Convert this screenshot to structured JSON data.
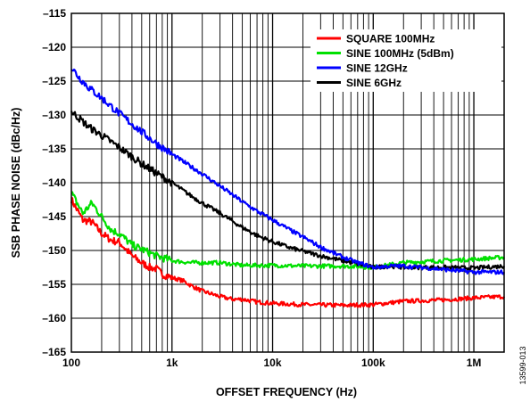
{
  "chart_data": {
    "type": "line",
    "title": "",
    "xlabel": "OFFSET FREQUENCY (Hz)",
    "ylabel": "SSB PHASE NOISE (dBc/Hz)",
    "x_scale": "log",
    "xlim": [
      100,
      2000000
    ],
    "ylim": [
      -165,
      -115
    ],
    "x_ticks": [
      {
        "value": 100,
        "label": "100"
      },
      {
        "value": 1000,
        "label": "1k"
      },
      {
        "value": 10000,
        "label": "10k"
      },
      {
        "value": 100000,
        "label": "100k"
      },
      {
        "value": 1000000,
        "label": "1M"
      }
    ],
    "y_ticks": [
      {
        "value": -115,
        "label": "–115"
      },
      {
        "value": -120,
        "label": "–120"
      },
      {
        "value": -125,
        "label": "–125"
      },
      {
        "value": -130,
        "label": "–130"
      },
      {
        "value": -135,
        "label": "–135"
      },
      {
        "value": -140,
        "label": "–140"
      },
      {
        "value": -145,
        "label": "–145"
      },
      {
        "value": -150,
        "label": "–150"
      },
      {
        "value": -155,
        "label": "–155"
      },
      {
        "value": -160,
        "label": "–160"
      },
      {
        "value": -165,
        "label": "–165"
      }
    ],
    "grid": true,
    "legend_position": "top-right",
    "series": [
      {
        "name": "SQUARE 100MHz",
        "color": "#ff0000",
        "x": [
          100,
          130,
          160,
          200,
          250,
          300,
          400,
          500,
          600,
          700,
          800,
          1000,
          1300,
          1600,
          2000,
          3000,
          4000,
          5000,
          7000,
          10000,
          20000,
          50000,
          100000,
          200000,
          500000,
          1000000,
          2000000
        ],
        "y": [
          -142.5,
          -145.5,
          -145.8,
          -147.5,
          -148.5,
          -148.8,
          -150.8,
          -151.8,
          -152.5,
          -152.7,
          -153.5,
          -154,
          -154.5,
          -155.3,
          -156,
          -156.8,
          -157.2,
          -157.2,
          -157.6,
          -157.8,
          -158,
          -158.1,
          -158,
          -157.5,
          -157.3,
          -157,
          -156.8
        ]
      },
      {
        "name": "SINE 100MHz (5dBm)",
        "color": "#00e000",
        "x": [
          100,
          130,
          160,
          200,
          250,
          300,
          400,
          500,
          700,
          1000,
          1500,
          2000,
          3000,
          5000,
          10000,
          20000,
          50000,
          100000,
          200000,
          500000,
          1000000,
          2000000
        ],
        "y": [
          -141.5,
          -144.5,
          -143,
          -145,
          -147,
          -147.5,
          -149.2,
          -149.8,
          -150.8,
          -151.5,
          -151.8,
          -151.8,
          -151.8,
          -152.2,
          -152.2,
          -152.3,
          -152.3,
          -152.5,
          -151.8,
          -151.5,
          -151.3,
          -151
        ]
      },
      {
        "name": "SINE 12GHz",
        "color": "#0000ff",
        "x": [
          100,
          120,
          150,
          200,
          300,
          500,
          700,
          1000,
          1500,
          2000,
          3000,
          5000,
          7000,
          10000,
          15000,
          20000,
          30000,
          50000,
          70000,
          100000,
          150000,
          200000,
          300000,
          500000,
          1000000,
          2000000
        ],
        "y": [
          -123,
          -124.5,
          -126,
          -127.5,
          -129.8,
          -132.5,
          -134.2,
          -135.8,
          -137.5,
          -138.7,
          -140.5,
          -142.8,
          -144.2,
          -145.5,
          -147,
          -148,
          -149.5,
          -151,
          -151.8,
          -152.5,
          -152.3,
          -152.3,
          -152.5,
          -152.8,
          -153.2,
          -153.2
        ]
      },
      {
        "name": "SINE 6GHz",
        "color": "#000000",
        "x": [
          100,
          120,
          150,
          200,
          300,
          500,
          700,
          1000,
          1500,
          2000,
          3000,
          5000,
          7000,
          10000,
          15000,
          20000,
          30000,
          50000,
          70000,
          100000,
          150000,
          200000,
          300000,
          500000,
          1000000,
          2000000
        ],
        "y": [
          -129.5,
          -130.5,
          -131.8,
          -133,
          -134.8,
          -137.2,
          -138.6,
          -140,
          -141.8,
          -143,
          -144.5,
          -146.6,
          -147.8,
          -148.7,
          -149.6,
          -150.1,
          -150.8,
          -151.5,
          -152,
          -152.5,
          -152.3,
          -152.5,
          -152.5,
          -152.5,
          -152.6,
          -152.3
        ]
      }
    ],
    "side_note": "13599-013"
  }
}
